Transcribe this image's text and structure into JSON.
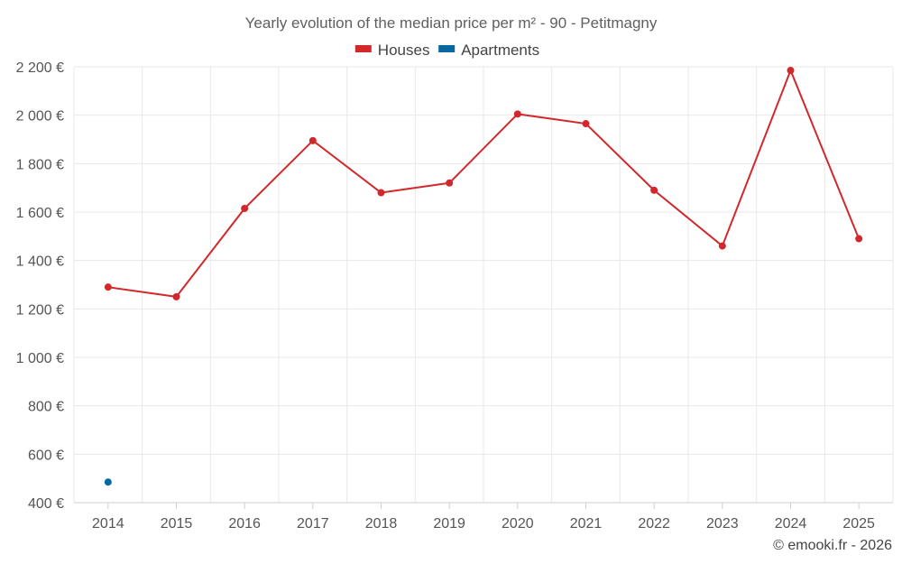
{
  "chart_data": {
    "type": "line",
    "title": "Yearly evolution of the median price per m² - 90 - Petitmagny",
    "categories": [
      "2014",
      "2015",
      "2016",
      "2017",
      "2018",
      "2019",
      "2020",
      "2021",
      "2022",
      "2023",
      "2024",
      "2025"
    ],
    "series": [
      {
        "name": "Houses",
        "color": "#d3282b",
        "values": [
          1290,
          1250,
          1615,
          1895,
          1680,
          1720,
          2005,
          1965,
          1690,
          1460,
          2185,
          1490
        ]
      },
      {
        "name": "Apartments",
        "color": "#05689f",
        "values": [
          485,
          null,
          null,
          null,
          null,
          null,
          null,
          null,
          null,
          null,
          null,
          null
        ]
      }
    ],
    "ylim": [
      400,
      2200
    ],
    "yticks": [
      400,
      600,
      800,
      1000,
      1200,
      1400,
      1600,
      1800,
      2000,
      2200
    ],
    "ytick_labels": [
      "400 €",
      "600 €",
      "800 €",
      "1 000 €",
      "1 200 €",
      "1 400 €",
      "1 600 €",
      "1 800 €",
      "2 000 €",
      "2 200 €"
    ],
    "legend_position": "top-center",
    "grid": true,
    "credit": "© emooki.fr - 2026"
  }
}
